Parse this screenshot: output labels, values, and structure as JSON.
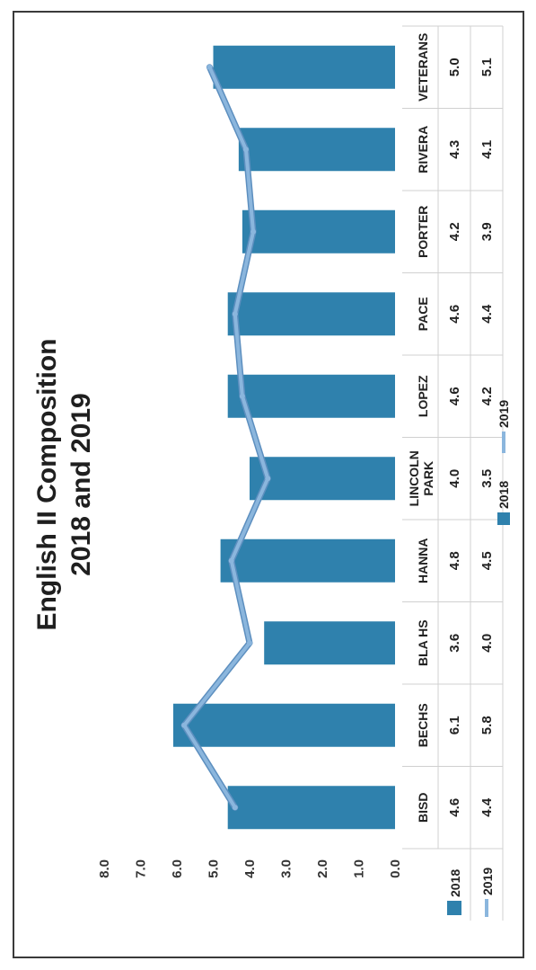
{
  "title_line1": "English II Composition",
  "title_line2": "2018 and 2019",
  "colors": {
    "bar_2018": "#2f81ad",
    "line_2019": "#8bb6dd",
    "line_2019_edge": "#5d8fbf"
  },
  "chart_data": {
    "type": "bar",
    "title": "English II Composition 2018 and 2019",
    "categories": [
      "BISD",
      "BECHS",
      "BLA HS",
      "HANNA",
      "LINCOLN PARK",
      "LOPEZ",
      "PACE",
      "PORTER",
      "RIVERA",
      "VETERANS"
    ],
    "category_lines": [
      [
        "BISD"
      ],
      [
        "BECHS"
      ],
      [
        "BLA HS"
      ],
      [
        "HANNA"
      ],
      [
        "LINCOLN",
        "PARK"
      ],
      [
        "LOPEZ"
      ],
      [
        "PACE"
      ],
      [
        "PORTER"
      ],
      [
        "RIVERA"
      ],
      [
        "VETERANS"
      ]
    ],
    "series": [
      {
        "name": "2018",
        "type": "bar",
        "values": [
          4.6,
          6.1,
          3.6,
          4.8,
          4.0,
          4.6,
          4.6,
          4.2,
          4.3,
          5.0
        ]
      },
      {
        "name": "2019",
        "type": "line",
        "values": [
          4.4,
          5.8,
          4.0,
          4.5,
          3.5,
          4.2,
          4.4,
          3.9,
          4.1,
          5.1
        ]
      }
    ],
    "series_value_labels": [
      [
        "4.6",
        "6.1",
        "3.6",
        "4.8",
        "4.0",
        "4.6",
        "4.6",
        "4.2",
        "4.3",
        "5.0"
      ],
      [
        "4.4",
        "5.8",
        "4.0",
        "4.5",
        "3.5",
        "4.2",
        "4.4",
        "3.9",
        "4.1",
        "5.1"
      ]
    ],
    "ylim": [
      0,
      8
    ],
    "yticks": [
      "0.0",
      "1.0",
      "2.0",
      "3.0",
      "4.0",
      "5.0",
      "6.0",
      "7.0",
      "8.0"
    ],
    "legend_position": "bottom",
    "grid": false
  }
}
